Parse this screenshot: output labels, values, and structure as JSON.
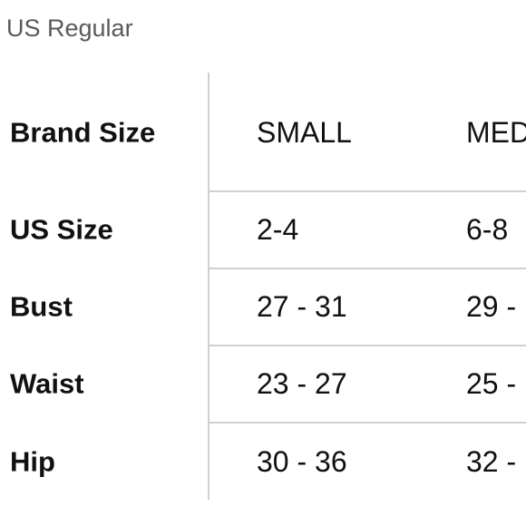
{
  "title": "US Regular",
  "table": {
    "header": [
      "Brand Size",
      "SMALL",
      "MED"
    ],
    "rows": [
      [
        "US Size",
        "2-4",
        "6-8"
      ],
      [
        "Bust",
        "27 - 31",
        "29 -"
      ],
      [
        "Waist",
        "23 - 27",
        "25 -"
      ],
      [
        "Hip",
        "30 - 36",
        "32 -"
      ]
    ]
  }
}
